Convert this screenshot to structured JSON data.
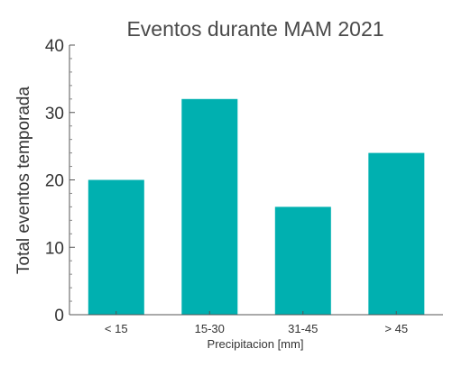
{
  "chart_data": {
    "type": "bar",
    "title": "Eventos durante MAM 2021",
    "xlabel": "Precipitacion [mm]",
    "ylabel": "Total eventos temporada",
    "categories": [
      "< 15",
      "15-30",
      "31-45",
      "> 45"
    ],
    "values": [
      20,
      32,
      16,
      24
    ],
    "ylim": [
      0,
      40
    ],
    "yticks": [
      "0",
      "10",
      "20",
      "30",
      "40"
    ],
    "bar_color": "#00b0b0",
    "grid": false,
    "legend": "none"
  }
}
